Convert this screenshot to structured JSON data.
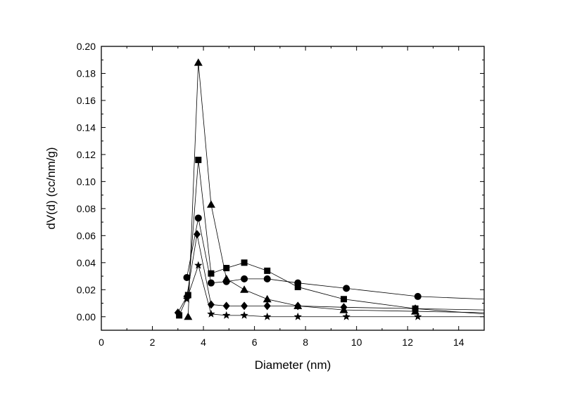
{
  "chart_data": {
    "type": "scatter",
    "xlabel": "Diameter (nm)",
    "ylabel": "dV(d) (cc/nm/g)",
    "xlim": [
      0,
      15
    ],
    "ylim": [
      -0.01,
      0.2
    ],
    "x_ticks": [
      "0",
      "2",
      "4",
      "6",
      "8",
      "10",
      "12",
      "14"
    ],
    "y_ticks": [
      "0.00",
      "0.02",
      "0.04",
      "0.06",
      "0.08",
      "0.10",
      "0.12",
      "0.14",
      "0.16",
      "0.18",
      "0.20"
    ],
    "grid": false,
    "legend": "none",
    "series": [
      {
        "marker": "triangle",
        "x": [
          3.4,
          3.8,
          4.3,
          4.9,
          5.6,
          6.5,
          7.7,
          9.5,
          12.3,
          15
        ],
        "y": [
          0.0,
          0.188,
          0.083,
          0.028,
          0.02,
          0.013,
          0.008,
          0.005,
          0.004,
          0.003
        ]
      },
      {
        "marker": "square",
        "x": [
          3.05,
          3.4,
          3.8,
          4.3,
          4.9,
          5.6,
          6.5,
          7.7,
          9.5,
          12.3,
          15
        ],
        "y": [
          0.001,
          0.016,
          0.116,
          0.032,
          0.036,
          0.04,
          0.034,
          0.022,
          0.013,
          0.006,
          0.005
        ]
      },
      {
        "marker": "circle",
        "x": [
          3.35,
          3.8,
          4.3,
          4.9,
          5.6,
          6.5,
          7.7,
          9.6,
          12.4,
          15
        ],
        "y": [
          0.029,
          0.073,
          0.025,
          0.026,
          0.028,
          0.028,
          0.025,
          0.021,
          0.015,
          0.013
        ]
      },
      {
        "marker": "diamond",
        "x": [
          3.0,
          3.35,
          3.75,
          4.3,
          4.9,
          5.6,
          6.5,
          7.7,
          9.5,
          12.3,
          15
        ],
        "y": [
          0.003,
          0.015,
          0.061,
          0.009,
          0.008,
          0.008,
          0.008,
          0.008,
          0.007,
          0.006,
          0.002
        ]
      },
      {
        "marker": "star",
        "x": [
          3.35,
          3.8,
          4.3,
          4.9,
          5.6,
          6.5,
          7.7,
          9.6,
          12.4,
          15
        ],
        "y": [
          0.013,
          0.038,
          0.002,
          0.001,
          0.001,
          0.0,
          0.0,
          0.0,
          0.0,
          0.0
        ]
      }
    ]
  }
}
